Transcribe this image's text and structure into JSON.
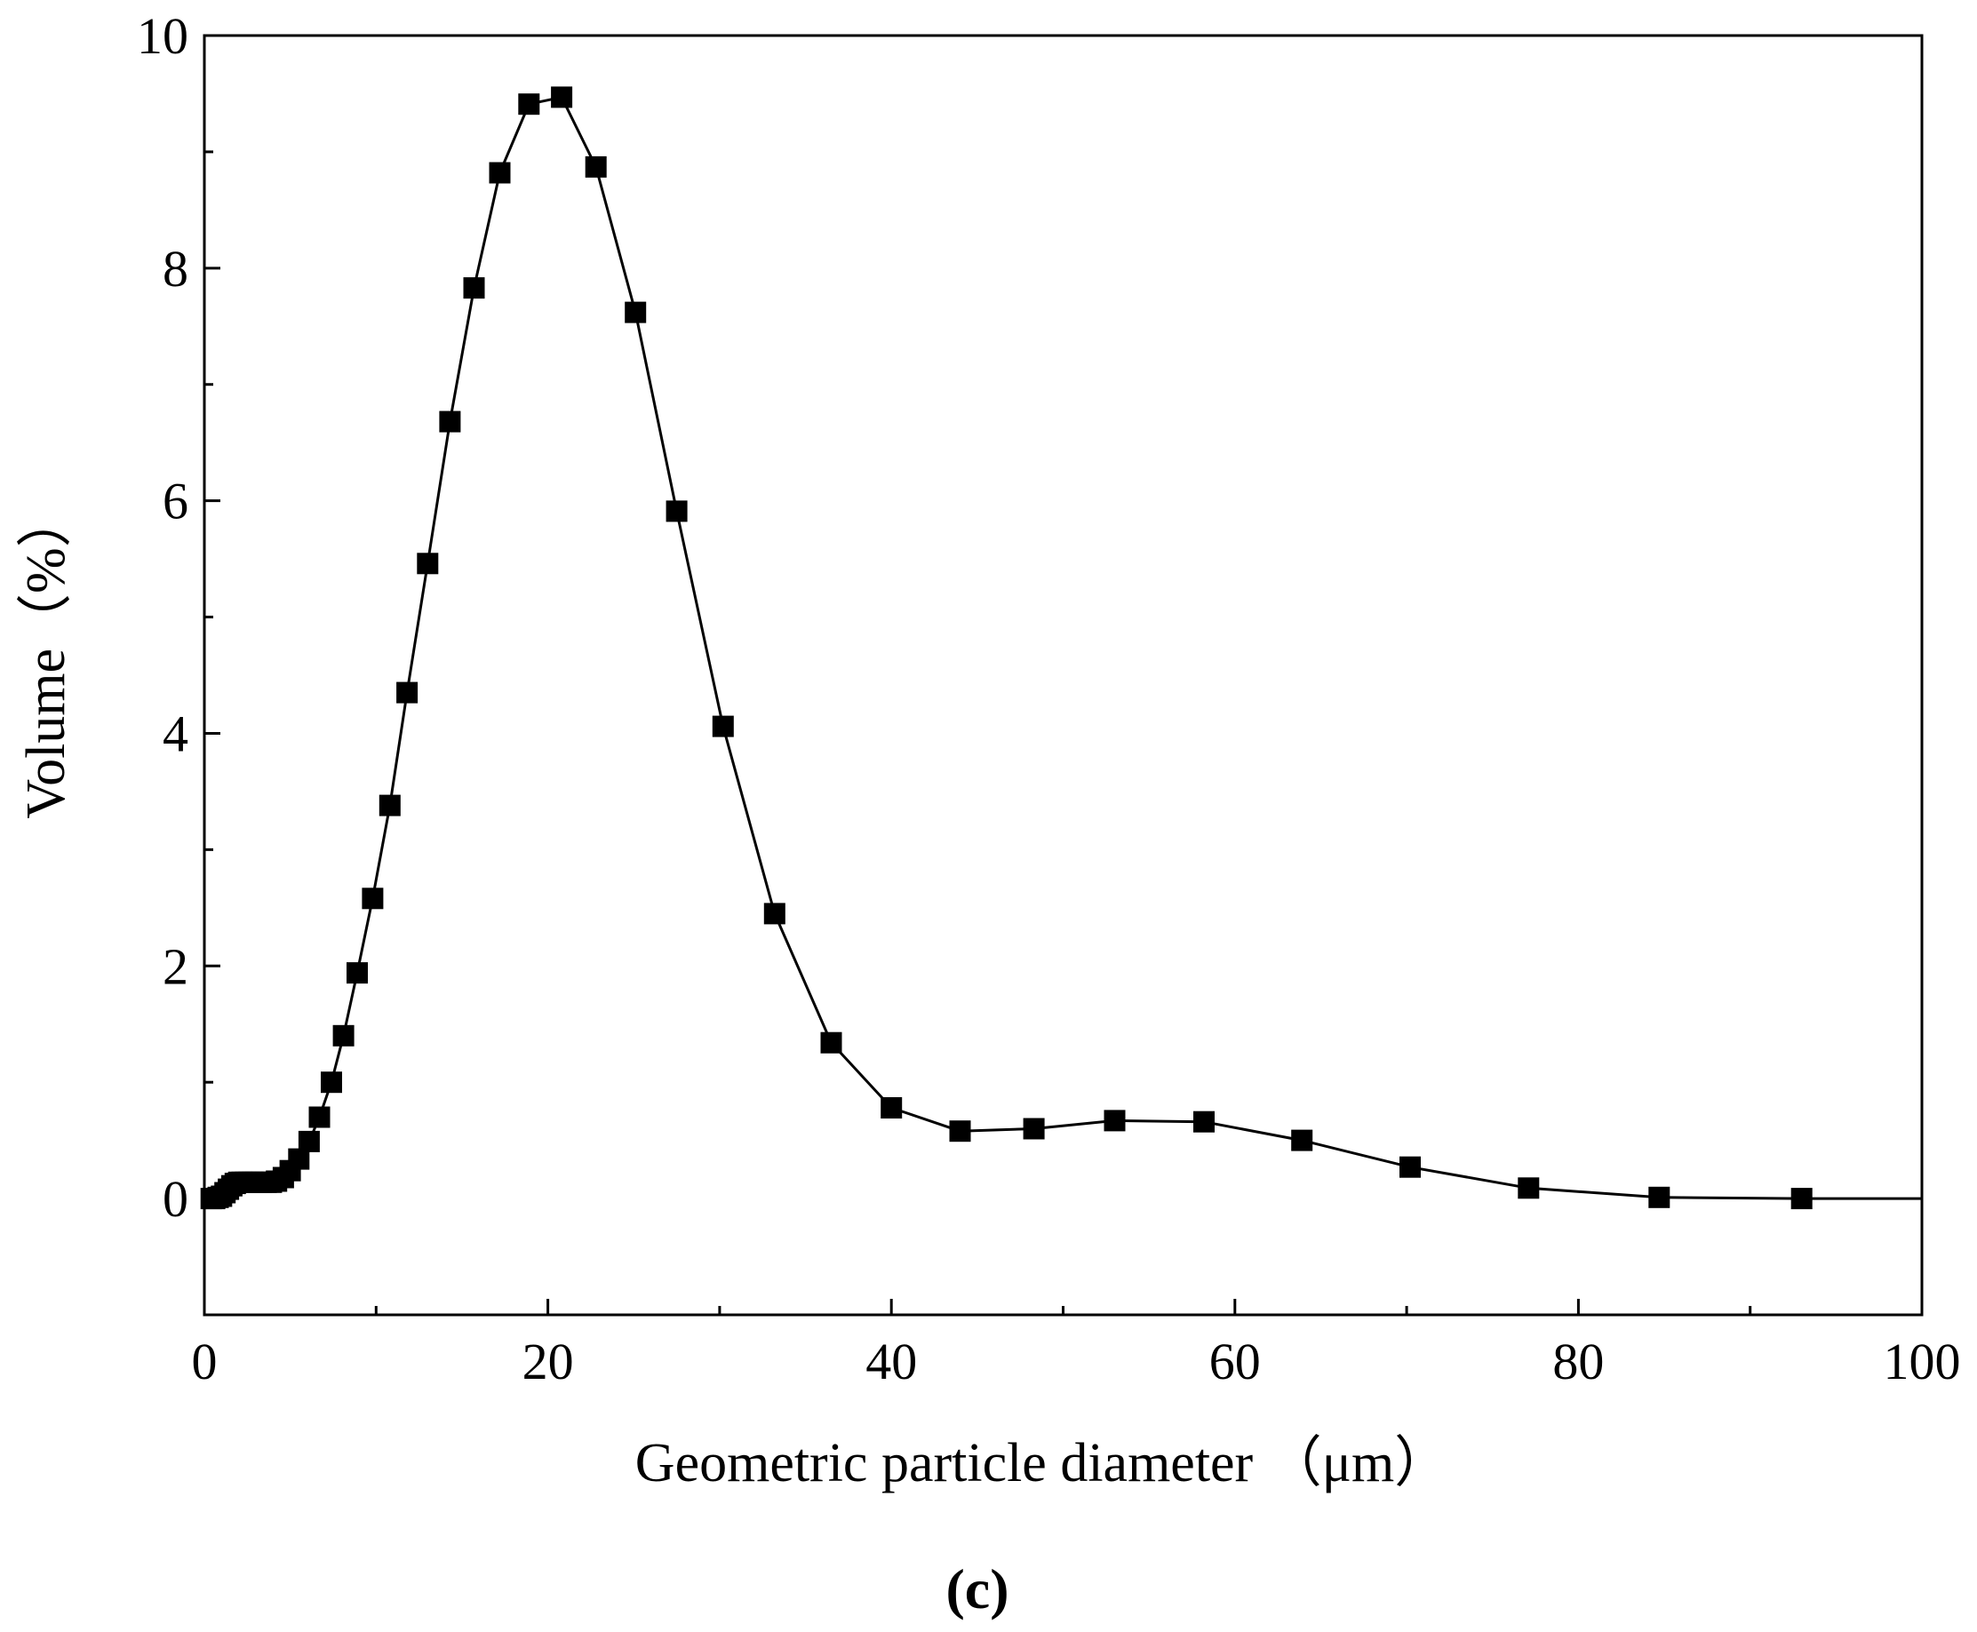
{
  "chart_data": {
    "type": "line",
    "xlabel": "Geometric particle diameter （μm）",
    "ylabel": "Volume（%）",
    "panel_label": "(c)",
    "xlim": [
      0,
      100
    ],
    "ylim": [
      -1,
      10
    ],
    "xticks": [
      0,
      20,
      40,
      60,
      80,
      100
    ],
    "yticks": [
      0,
      2,
      4,
      6,
      8,
      10
    ],
    "xtick_labels": [
      "0",
      "20",
      "40",
      "60",
      "80",
      "100"
    ],
    "ytick_labels": [
      "0",
      "2",
      "4",
      "6",
      "8",
      "10"
    ],
    "grid": false,
    "marker": "square",
    "color": "#000000",
    "series": [
      {
        "x": [
          0.4,
          0.6,
          0.8,
          1.0,
          1.2,
          1.4,
          1.6,
          1.8,
          2.0,
          2.2,
          2.4,
          2.6,
          2.8,
          3.0,
          3.3,
          3.6,
          3.9,
          4.2,
          4.6,
          5.0,
          5.5,
          6.1,
          6.7,
          7.4,
          8.1,
          8.9,
          9.8,
          10.8,
          11.8,
          13.0,
          14.3,
          15.7,
          17.2,
          18.9,
          20.8,
          22.8,
          25.1,
          27.5,
          30.2,
          33.2,
          36.5,
          40.0,
          44.0,
          48.3,
          53.0,
          58.2,
          63.9,
          70.2,
          77.1,
          84.7,
          93.0,
          100.0
        ],
        "y": [
          0.0,
          0.0,
          0.01,
          0.02,
          0.05,
          0.08,
          0.11,
          0.13,
          0.14,
          0.14,
          0.14,
          0.14,
          0.14,
          0.14,
          0.14,
          0.14,
          0.14,
          0.15,
          0.18,
          0.24,
          0.34,
          0.49,
          0.7,
          1.0,
          1.4,
          1.94,
          2.58,
          3.38,
          4.35,
          5.46,
          6.68,
          7.83,
          8.82,
          9.41,
          9.47,
          8.87,
          7.62,
          5.91,
          4.06,
          2.45,
          1.34,
          0.78,
          0.58,
          0.6,
          0.67,
          0.66,
          0.5,
          0.27,
          0.09,
          0.01,
          0.0,
          0.0
        ]
      }
    ]
  }
}
